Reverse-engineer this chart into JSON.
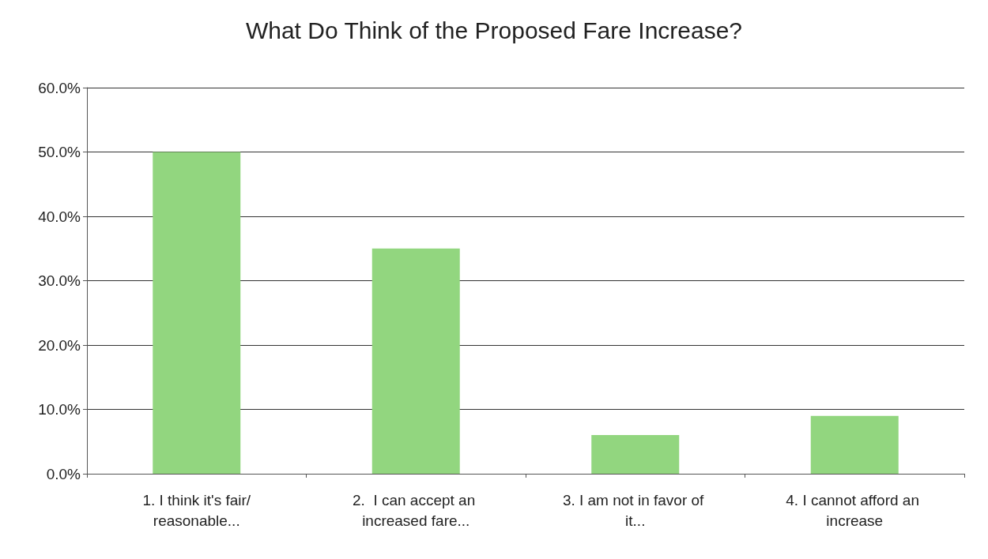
{
  "chart_data": {
    "type": "bar",
    "title": "What Do Think of the Proposed Fare Increase?",
    "categories": [
      "1. I think it's fair/reasonable...",
      "2.  I can accept an increased fare...",
      "3. I am not in favor of it...",
      "4. I cannot afford an increase"
    ],
    "values": [
      50,
      35,
      6,
      9
    ],
    "color": "#92d67f",
    "ylim": [
      0,
      60
    ],
    "yticks": [
      {
        "value": 0,
        "label": "0.0%"
      },
      {
        "value": 10,
        "label": "10.0%"
      },
      {
        "value": 20,
        "label": "20.0%"
      },
      {
        "value": 30,
        "label": "30.0%"
      },
      {
        "value": 40,
        "label": "40.0%"
      },
      {
        "value": 50,
        "label": "50.0%"
      },
      {
        "value": 60,
        "label": "60.0%"
      }
    ],
    "grid": "y"
  }
}
